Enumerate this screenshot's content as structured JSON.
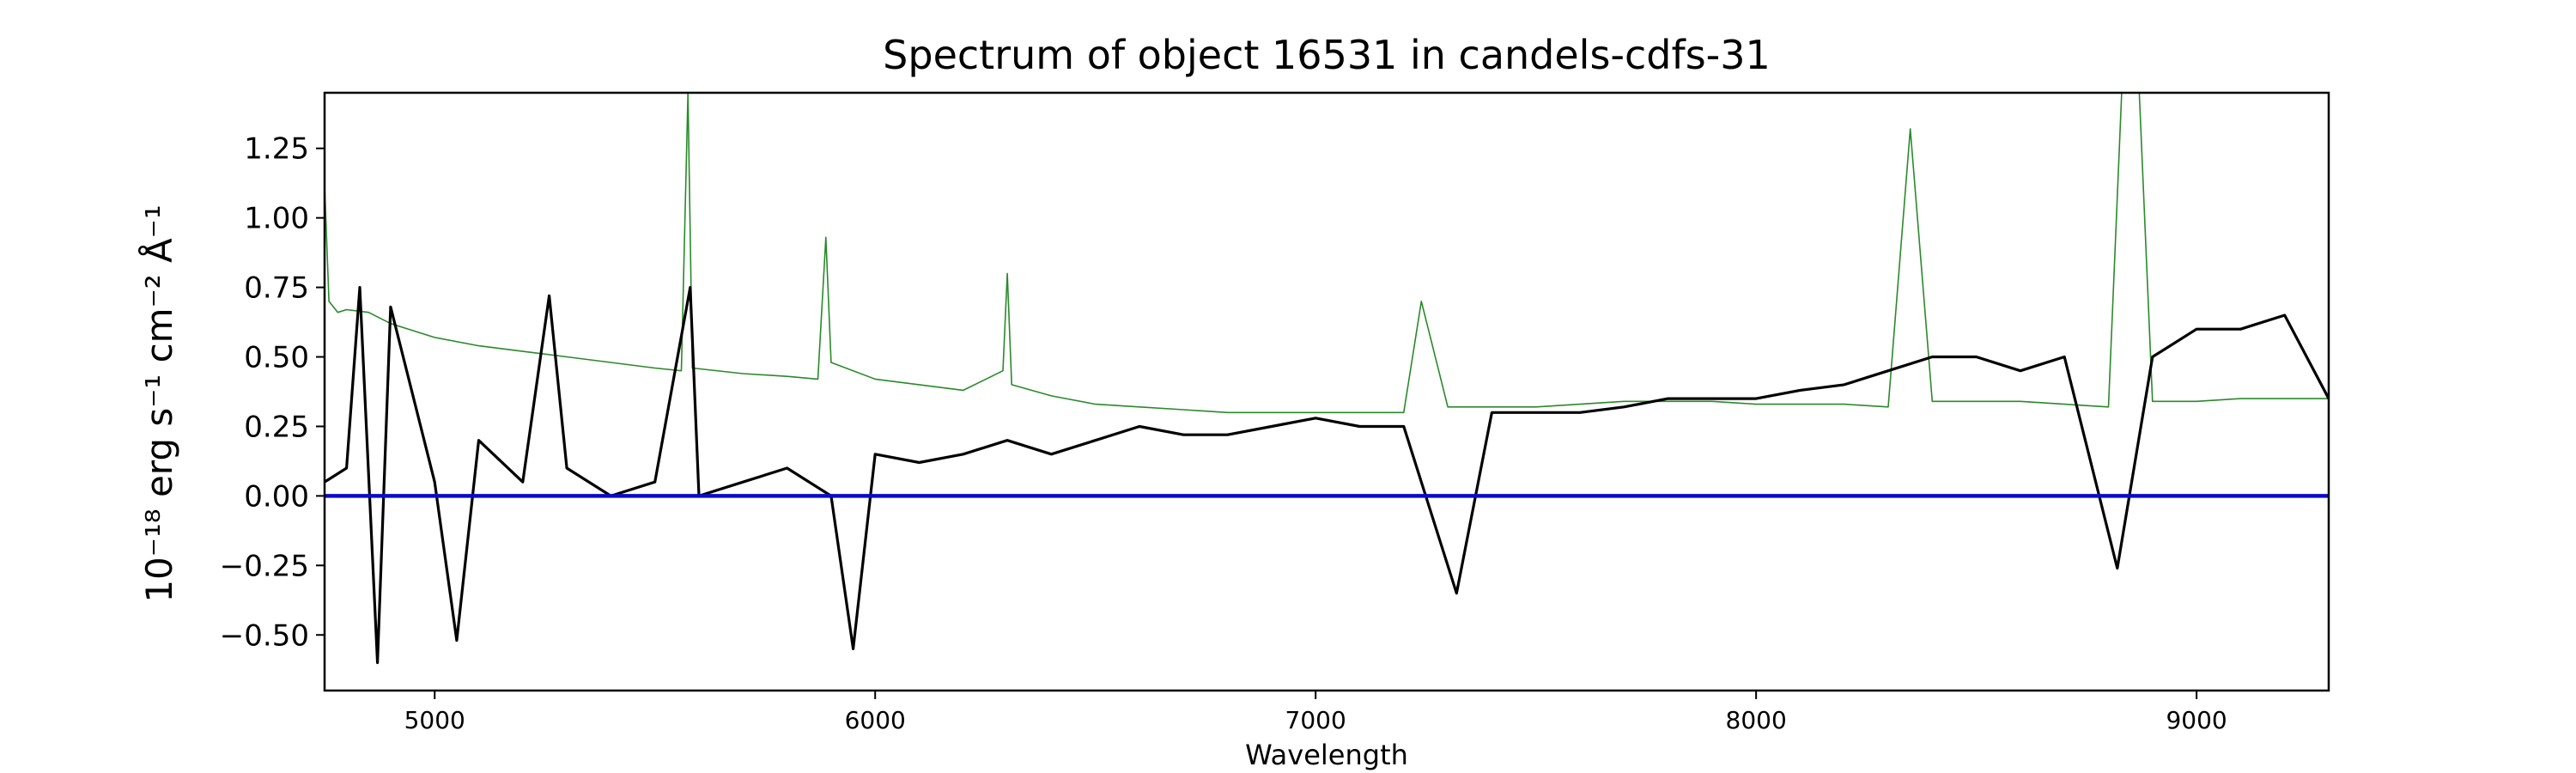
{
  "chart_data": {
    "type": "line",
    "title": "Spectrum of object 16531 in candels-cdfs-31",
    "xlabel": "Wavelength",
    "ylabel_html": "10⁻¹⁸ erg s⁻¹ cm⁻² Å⁻¹",
    "xlim": [
      4750,
      9300
    ],
    "ylim": [
      -0.7,
      1.45
    ],
    "x_ticks": [
      5000,
      6000,
      7000,
      8000,
      9000
    ],
    "y_ticks": [
      -0.5,
      -0.25,
      0.0,
      0.25,
      0.5,
      0.75,
      1.0,
      1.25
    ],
    "y_tick_labels": [
      "−0.50",
      "−0.25",
      "0.00",
      "0.25",
      "0.50",
      "0.75",
      "1.00",
      "1.25"
    ],
    "grid": false,
    "legend": "none",
    "series": [
      {
        "role": "error",
        "color": "#2a8a2a",
        "points": [
          [
            4750,
            1.12
          ],
          [
            4760,
            0.7
          ],
          [
            4780,
            0.66
          ],
          [
            4800,
            0.67
          ],
          [
            4850,
            0.66
          ],
          [
            4900,
            0.62
          ],
          [
            5000,
            0.57
          ],
          [
            5100,
            0.54
          ],
          [
            5200,
            0.52
          ],
          [
            5300,
            0.5
          ],
          [
            5400,
            0.48
          ],
          [
            5500,
            0.46
          ],
          [
            5560,
            0.45
          ],
          [
            5575,
            1.45
          ],
          [
            5585,
            0.46
          ],
          [
            5700,
            0.44
          ],
          [
            5800,
            0.43
          ],
          [
            5870,
            0.42
          ],
          [
            5888,
            0.93
          ],
          [
            5900,
            0.48
          ],
          [
            6000,
            0.42
          ],
          [
            6100,
            0.4
          ],
          [
            6200,
            0.38
          ],
          [
            6290,
            0.45
          ],
          [
            6300,
            0.8
          ],
          [
            6310,
            0.4
          ],
          [
            6400,
            0.36
          ],
          [
            6500,
            0.33
          ],
          [
            6600,
            0.32
          ],
          [
            6700,
            0.31
          ],
          [
            6800,
            0.3
          ],
          [
            6900,
            0.3
          ],
          [
            7000,
            0.3
          ],
          [
            7100,
            0.3
          ],
          [
            7200,
            0.3
          ],
          [
            7240,
            0.7
          ],
          [
            7300,
            0.32
          ],
          [
            7400,
            0.32
          ],
          [
            7500,
            0.32
          ],
          [
            7600,
            0.33
          ],
          [
            7700,
            0.34
          ],
          [
            7800,
            0.34
          ],
          [
            7900,
            0.34
          ],
          [
            8000,
            0.33
          ],
          [
            8100,
            0.33
          ],
          [
            8200,
            0.33
          ],
          [
            8300,
            0.32
          ],
          [
            8350,
            1.32
          ],
          [
            8400,
            0.34
          ],
          [
            8500,
            0.34
          ],
          [
            8600,
            0.34
          ],
          [
            8700,
            0.33
          ],
          [
            8800,
            0.32
          ],
          [
            8830,
            1.45
          ],
          [
            8870,
            1.45
          ],
          [
            8900,
            0.34
          ],
          [
            9000,
            0.34
          ],
          [
            9100,
            0.35
          ],
          [
            9200,
            0.35
          ],
          [
            9300,
            0.35
          ]
        ]
      },
      {
        "role": "flux",
        "color": "#000000",
        "points": [
          [
            4750,
            0.05
          ],
          [
            4800,
            0.1
          ],
          [
            4830,
            0.75
          ],
          [
            4870,
            -0.6
          ],
          [
            4900,
            0.68
          ],
          [
            5000,
            0.05
          ],
          [
            5050,
            -0.52
          ],
          [
            5100,
            0.2
          ],
          [
            5200,
            0.05
          ],
          [
            5260,
            0.72
          ],
          [
            5300,
            0.1
          ],
          [
            5400,
            0.0
          ],
          [
            5500,
            0.05
          ],
          [
            5580,
            0.75
          ],
          [
            5600,
            0.0
          ],
          [
            5700,
            0.05
          ],
          [
            5800,
            0.1
          ],
          [
            5900,
            0.0
          ],
          [
            5950,
            -0.55
          ],
          [
            6000,
            0.15
          ],
          [
            6100,
            0.12
          ],
          [
            6200,
            0.15
          ],
          [
            6300,
            0.2
          ],
          [
            6400,
            0.15
          ],
          [
            6500,
            0.2
          ],
          [
            6600,
            0.25
          ],
          [
            6700,
            0.22
          ],
          [
            6800,
            0.22
          ],
          [
            6900,
            0.25
          ],
          [
            7000,
            0.28
          ],
          [
            7100,
            0.25
          ],
          [
            7200,
            0.25
          ],
          [
            7320,
            -0.35
          ],
          [
            7400,
            0.3
          ],
          [
            7500,
            0.3
          ],
          [
            7600,
            0.3
          ],
          [
            7700,
            0.32
          ],
          [
            7800,
            0.35
          ],
          [
            7900,
            0.35
          ],
          [
            8000,
            0.35
          ],
          [
            8100,
            0.38
          ],
          [
            8200,
            0.4
          ],
          [
            8300,
            0.45
          ],
          [
            8400,
            0.5
          ],
          [
            8500,
            0.5
          ],
          [
            8600,
            0.45
          ],
          [
            8700,
            0.5
          ],
          [
            8820,
            -0.26
          ],
          [
            8900,
            0.5
          ],
          [
            9000,
            0.6
          ],
          [
            9100,
            0.6
          ],
          [
            9200,
            0.65
          ],
          [
            9300,
            0.35
          ]
        ]
      },
      {
        "role": "zero",
        "color": "#0a0acc",
        "points": [
          [
            4750,
            0.0
          ],
          [
            9300,
            0.0
          ]
        ]
      }
    ]
  }
}
